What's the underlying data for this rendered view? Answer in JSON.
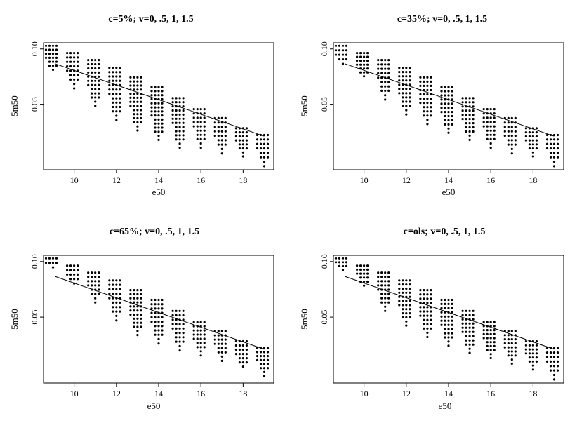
{
  "chart_data": [
    {
      "type": "scatter",
      "title": "c=5%; v=0, .5, 1, 1.5",
      "xlabel": "e50",
      "ylabel": "5m50",
      "x_ticks": [
        10,
        12,
        14,
        16,
        18
      ],
      "y_ticks": [
        0.1,
        0.05
      ],
      "y_tick_labels": [
        "0.10",
        "0.05"
      ],
      "y_scale": "log",
      "xlim": [
        8.55,
        19.45
      ],
      "ylim": [
        0.022,
        0.108
      ],
      "grid": false,
      "x": [
        9.0,
        10.0,
        11.0,
        12.0,
        13.0,
        14.0,
        15.0,
        16.0,
        17.0,
        18.0,
        19.0
      ],
      "column_ranges": [
        [
          0.077,
          0.104
        ],
        [
          0.061,
          0.095
        ],
        [
          0.049,
          0.087
        ],
        [
          0.041,
          0.079
        ],
        [
          0.036,
          0.07
        ],
        [
          0.032,
          0.062
        ],
        [
          0.029,
          0.054
        ],
        [
          0.029,
          0.047
        ],
        [
          0.027,
          0.042
        ],
        [
          0.026,
          0.037
        ],
        [
          0.023,
          0.034
        ]
      ],
      "fit_line": {
        "x": [
          9.1,
          19.0
        ],
        "y": [
          0.083,
          0.0335
        ]
      }
    },
    {
      "type": "scatter",
      "title": "c=35%; v=0, .5, 1, 1.5",
      "xlabel": "e50",
      "ylabel": "5m50",
      "x_ticks": [
        10,
        12,
        14,
        16,
        18
      ],
      "y_ticks": [
        0.1,
        0.05
      ],
      "y_tick_labels": [
        "0.10",
        "0.05"
      ],
      "y_scale": "log",
      "xlim": [
        8.55,
        19.45
      ],
      "ylim": [
        0.022,
        0.108
      ],
      "grid": false,
      "x": [
        9.0,
        10.0,
        11.0,
        12.0,
        13.0,
        14.0,
        15.0,
        16.0,
        17.0,
        18.0,
        19.0
      ],
      "column_ranges": [
        [
          0.083,
          0.104
        ],
        [
          0.071,
          0.095
        ],
        [
          0.053,
          0.087
        ],
        [
          0.044,
          0.079
        ],
        [
          0.039,
          0.07
        ],
        [
          0.035,
          0.062
        ],
        [
          0.032,
          0.054
        ],
        [
          0.029,
          0.047
        ],
        [
          0.027,
          0.042
        ],
        [
          0.026,
          0.037
        ],
        [
          0.023,
          0.034
        ]
      ],
      "fit_line": {
        "x": [
          9.1,
          19.0
        ],
        "y": [
          0.083,
          0.0335
        ]
      }
    },
    {
      "type": "scatter",
      "title": "c=65%; v=0, .5, 1, 1.5",
      "xlabel": "e50",
      "ylabel": "5m50",
      "x_ticks": [
        10,
        12,
        14,
        16,
        18
      ],
      "y_ticks": [
        0.1,
        0.05
      ],
      "y_tick_labels": [
        "0.10",
        "0.05"
      ],
      "y_scale": "log",
      "xlim": [
        8.55,
        19.45
      ],
      "ylim": [
        0.022,
        0.108
      ],
      "grid": false,
      "x": [
        9.0,
        10.0,
        11.0,
        12.0,
        13.0,
        14.0,
        15.0,
        16.0,
        17.0,
        18.0,
        19.0
      ],
      "column_ranges": [
        [
          0.093,
          0.104
        ],
        [
          0.076,
          0.095
        ],
        [
          0.06,
          0.087
        ],
        [
          0.048,
          0.079
        ],
        [
          0.04,
          0.07
        ],
        [
          0.036,
          0.062
        ],
        [
          0.033,
          0.054
        ],
        [
          0.031,
          0.047
        ],
        [
          0.029,
          0.042
        ],
        [
          0.027,
          0.037
        ],
        [
          0.024,
          0.034
        ]
      ],
      "fit_line": {
        "x": [
          9.1,
          19.0
        ],
        "y": [
          0.083,
          0.0335
        ]
      }
    },
    {
      "type": "scatter",
      "title": "c=ols; v=0, .5, 1, 1.5",
      "xlabel": "e50",
      "ylabel": "5m50",
      "x_ticks": [
        10,
        12,
        14,
        16,
        18
      ],
      "y_ticks": [
        0.1,
        0.05
      ],
      "y_tick_labels": [
        "0.10",
        "0.05"
      ],
      "y_scale": "log",
      "xlim": [
        8.55,
        19.45
      ],
      "ylim": [
        0.022,
        0.108
      ],
      "grid": false,
      "x": [
        9.0,
        10.0,
        11.0,
        12.0,
        13.0,
        14.0,
        15.0,
        16.0,
        17.0,
        18.0,
        19.0
      ],
      "column_ranges": [
        [
          0.09,
          0.104
        ],
        [
          0.074,
          0.095
        ],
        [
          0.054,
          0.087
        ],
        [
          0.045,
          0.079
        ],
        [
          0.039,
          0.07
        ],
        [
          0.035,
          0.062
        ],
        [
          0.032,
          0.054
        ],
        [
          0.03,
          0.047
        ],
        [
          0.028,
          0.042
        ],
        [
          0.026,
          0.037
        ],
        [
          0.023,
          0.034
        ]
      ],
      "fit_line": {
        "x": [
          9.1,
          19.0
        ],
        "y": [
          0.083,
          0.0335
        ]
      }
    }
  ]
}
